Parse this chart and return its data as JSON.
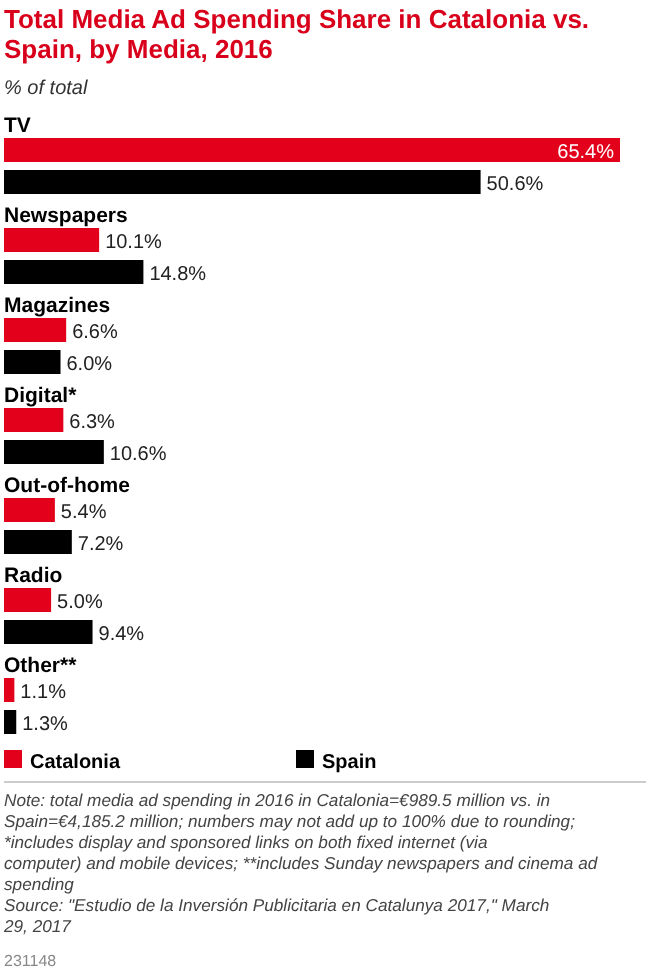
{
  "chart_data": {
    "type": "bar",
    "orientation": "horizontal",
    "title": "Total Media Ad Spending Share in Catalonia vs. Spain, by Media, 2016",
    "subtitle": "% of total",
    "categories": [
      "TV",
      "Newspapers",
      "Magazines",
      "Digital*",
      "Out-of-home",
      "Radio",
      "Other**"
    ],
    "series": [
      {
        "name": "Catalonia",
        "color": "#e3001b",
        "values": [
          65.4,
          10.1,
          6.6,
          6.3,
          5.4,
          5.0,
          1.1
        ],
        "value_labels": [
          "65.4%",
          "10.1%",
          "6.6%",
          "6.3%",
          "5.4%",
          "5.0%",
          "1.1%"
        ]
      },
      {
        "name": "Spain",
        "color": "#000000",
        "values": [
          50.6,
          14.8,
          6.0,
          10.6,
          7.2,
          9.4,
          1.3
        ],
        "value_labels": [
          "50.6%",
          "14.8%",
          "6.0%",
          "10.6%",
          "7.2%",
          "9.4%",
          "1.3%"
        ]
      }
    ],
    "legend": "bottom left",
    "annotations": [
      "Note: total media ad spending in 2016 in Catalonia=€989.5 million vs. in Spain=€4,185.2 million; numbers may not add up to 100% due to rounding; *includes display and sponsored links on both fixed internet (via computer) and mobile devices; **includes Sunday newspapers and cinema ad spending",
      "Source: \"Estudio de la Inversión Publicitaria en Catalunya 2017,\" March 29, 2017",
      "231148"
    ]
  }
}
